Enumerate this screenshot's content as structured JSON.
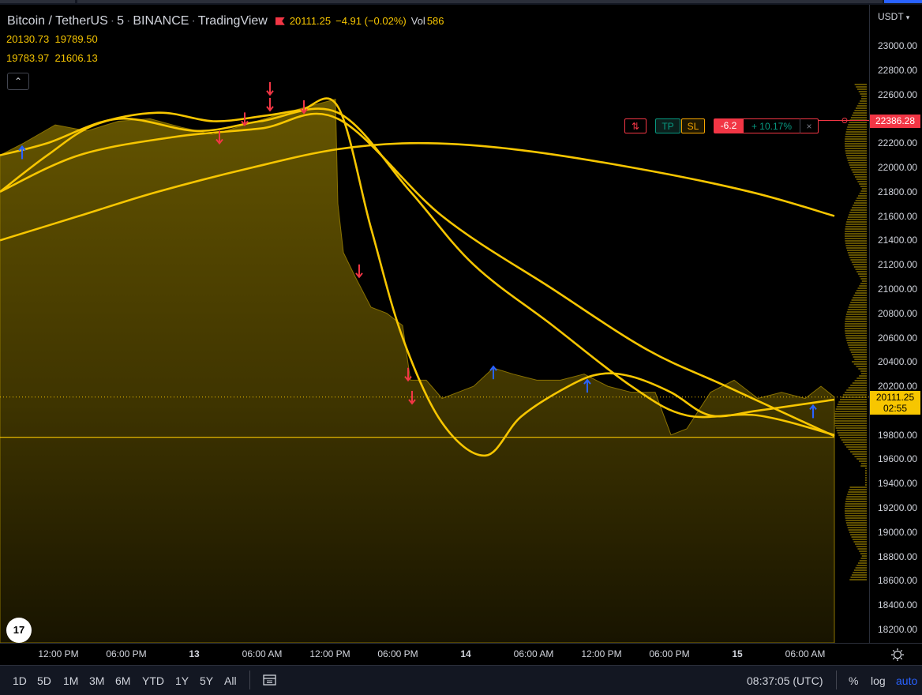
{
  "legend": {
    "symbol": "Bitcoin / TetherUS",
    "interval": "5",
    "exchange": "BINANCE",
    "publisher": "TradingView",
    "last": "20111.25",
    "change": "−4.91 (−0.02%)",
    "vol_label": "Vol",
    "vol_value": "586"
  },
  "indicators": [
    {
      "a": "20130.73",
      "b": "19789.50"
    },
    {
      "a": "19783.97",
      "b": "21606.13"
    }
  ],
  "logo_text": "17",
  "axis": {
    "currency": "USDT",
    "ticks": [
      "23000.00",
      "22800.00",
      "22600.00",
      "22400.00",
      "22200.00",
      "22000.00",
      "21800.00",
      "21600.00",
      "21400.00",
      "21200.00",
      "21000.00",
      "20800.00",
      "20600.00",
      "20400.00",
      "20200.00",
      "19800.00",
      "19600.00",
      "19400.00",
      "19200.00",
      "19000.00",
      "18800.00",
      "18600.00",
      "18400.00",
      "18200.00"
    ],
    "last_price_label": "20111.25",
    "countdown": "02:55",
    "red_price_label": "22386.28"
  },
  "position": {
    "arrows": "⇅",
    "tp": "TP",
    "sl": "SL",
    "pnl": "-6.2",
    "pct": "+ 10.17%",
    "close": "×"
  },
  "time_axis": [
    "12:00 PM",
    "06:00 PM",
    "13",
    "06:00 AM",
    "12:00 PM",
    "06:00 PM",
    "14",
    "06:00 AM",
    "12:00 PM",
    "06:00 PM",
    "15",
    "06:00 AM"
  ],
  "ranges": [
    "1D",
    "5D",
    "1M",
    "3M",
    "6M",
    "YTD",
    "1Y",
    "5Y",
    "All"
  ],
  "clock": "08:37:05 (UTC)",
  "scale_options": [
    "%",
    "log",
    "auto"
  ],
  "colors": {
    "line": "#f7c600",
    "area": "#8a7200",
    "down": "#f23645",
    "up": "#2962ff"
  },
  "chart_data": {
    "type": "area",
    "title": "Bitcoin / TetherUS",
    "ylim": [
      18100,
      23150
    ],
    "grid": false,
    "x_ticks": [
      "12:00 PM",
      "06:00 PM",
      "13",
      "06:00 AM",
      "12:00 PM",
      "06:00 PM",
      "14",
      "06:00 AM",
      "12:00 PM",
      "06:00 PM",
      "15",
      "06:00 AM"
    ],
    "price": [
      [
        0,
        22100
      ],
      [
        30,
        22200
      ],
      [
        70,
        22350
      ],
      [
        110,
        22300
      ],
      [
        150,
        22380
      ],
      [
        190,
        22400
      ],
      [
        230,
        22330
      ],
      [
        270,
        22270
      ],
      [
        310,
        22350
      ],
      [
        350,
        22430
      ],
      [
        390,
        22500
      ],
      [
        425,
        22560
      ],
      [
        428,
        21700
      ],
      [
        435,
        21300
      ],
      [
        450,
        21100
      ],
      [
        470,
        20850
      ],
      [
        490,
        20800
      ],
      [
        510,
        20700
      ],
      [
        520,
        20250
      ],
      [
        540,
        20250
      ],
      [
        560,
        20100
      ],
      [
        580,
        20150
      ],
      [
        600,
        20200
      ],
      [
        625,
        20350
      ],
      [
        650,
        20300
      ],
      [
        680,
        20250
      ],
      [
        710,
        20250
      ],
      [
        740,
        20300
      ],
      [
        770,
        20200
      ],
      [
        800,
        20150
      ],
      [
        830,
        20150
      ],
      [
        850,
        19800
      ],
      [
        870,
        19850
      ],
      [
        900,
        20150
      ],
      [
        930,
        20250
      ],
      [
        960,
        20100
      ],
      [
        990,
        20150
      ],
      [
        1020,
        20100
      ],
      [
        1040,
        20200
      ],
      [
        1057,
        20111
      ]
    ],
    "series": [
      {
        "values": [
          [
            0,
            21800
          ],
          [
            60,
            22100
          ],
          [
            120,
            22350
          ],
          [
            200,
            22450
          ],
          [
            270,
            22380
          ],
          [
            330,
            22420
          ],
          [
            380,
            22470
          ],
          [
            428,
            22500
          ],
          [
            470,
            21500
          ],
          [
            510,
            20600
          ],
          [
            560,
            19900
          ],
          [
            615,
            19630
          ],
          [
            660,
            19950
          ],
          [
            720,
            20200
          ],
          [
            760,
            20300
          ],
          [
            800,
            20280
          ],
          [
            850,
            20150
          ],
          [
            900,
            19960
          ],
          [
            960,
            20000
          ],
          [
            1057,
            20090
          ]
        ]
      },
      {
        "values": [
          [
            0,
            22100
          ],
          [
            60,
            22200
          ],
          [
            150,
            22400
          ],
          [
            250,
            22300
          ],
          [
            330,
            22380
          ],
          [
            428,
            22450
          ],
          [
            520,
            21800
          ],
          [
            600,
            21200
          ],
          [
            700,
            20700
          ],
          [
            800,
            20200
          ],
          [
            870,
            19960
          ],
          [
            960,
            19960
          ],
          [
            1057,
            19800
          ]
        ]
      },
      {
        "values": [
          [
            0,
            21800
          ],
          [
            100,
            22100
          ],
          [
            220,
            22250
          ],
          [
            330,
            22320
          ],
          [
            428,
            22400
          ],
          [
            560,
            21600
          ],
          [
            700,
            21000
          ],
          [
            820,
            20500
          ],
          [
            920,
            20200
          ],
          [
            1057,
            19790
          ]
        ]
      },
      {
        "values": [
          [
            0,
            21400
          ],
          [
            100,
            21600
          ],
          [
            200,
            21800
          ],
          [
            320,
            22000
          ],
          [
            428,
            22150
          ],
          [
            530,
            22200
          ],
          [
            650,
            22150
          ],
          [
            800,
            22000
          ],
          [
            950,
            21800
          ],
          [
            1057,
            21600
          ]
        ]
      },
      {
        "values": [
          [
            0,
            19780
          ],
          [
            1057,
            19780
          ]
        ]
      }
    ],
    "down_arrows": [
      [
        278,
        22250
      ],
      [
        310,
        22400
      ],
      [
        342,
        22650
      ],
      [
        342,
        22520
      ],
      [
        385,
        22500
      ],
      [
        455,
        21150
      ],
      [
        517,
        20300
      ],
      [
        522,
        20110
      ]
    ],
    "up_arrows": [
      [
        28,
        22120
      ],
      [
        625,
        20310
      ],
      [
        744,
        20200
      ],
      [
        1030,
        19990
      ]
    ]
  }
}
